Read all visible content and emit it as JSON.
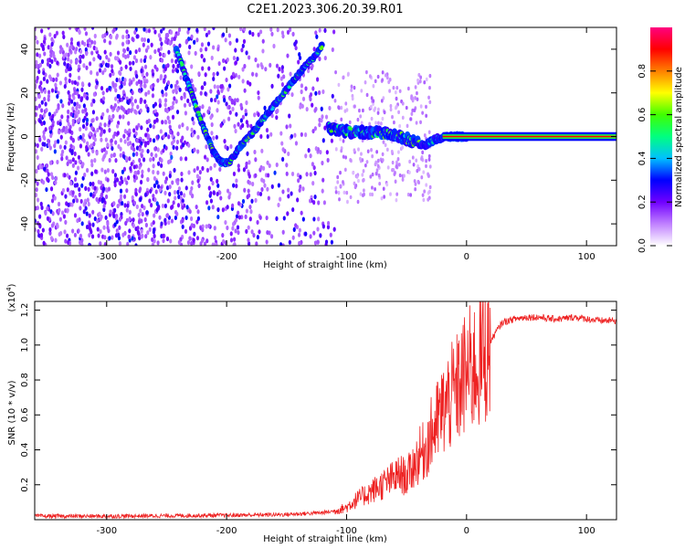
{
  "title": "C2E1.2023.306.20.39.R01",
  "chart_data": [
    {
      "type": "heatmap",
      "title": "C2E1.2023.306.20.39.R01",
      "xlabel": "Height of straight line (km)",
      "ylabel": "Frequency (Hz)",
      "xlim": [
        -360,
        125
      ],
      "ylim": [
        -50,
        50
      ],
      "x_ticks": [
        -300,
        -200,
        -100,
        0,
        100
      ],
      "y_ticks": [
        -40,
        -20,
        0,
        20,
        40
      ],
      "grid": false,
      "description_series": [
        {
          "name": "",
          "x": [
            -242,
            -232,
            -222,
            -212,
            -205,
            -198,
            -188,
            -178,
            -168,
            -158,
            -148,
            -138,
            -128,
            -120
          ],
          "y": [
            40,
            24,
            8,
            -6,
            -12,
            -12,
            -4,
            2,
            9,
            16,
            23,
            30,
            36,
            42
          ]
        },
        {
          "name": "",
          "x": [
            -115,
            -105,
            -95,
            -85,
            -75,
            -65,
            -55,
            -45,
            -35,
            -25,
            -15,
            -5,
            5,
            125
          ],
          "y": [
            4,
            3,
            2,
            2,
            2,
            1,
            0,
            -2,
            -4,
            -1,
            0,
            0,
            0,
            0
          ]
        }
      ],
      "colorbar": {
        "label": "Normalized spectral amplitude",
        "range": [
          0.0,
          1.0
        ],
        "ticks": [
          0.0,
          0.2,
          0.4,
          0.6,
          0.8
        ],
        "colors": [
          "#ffffff",
          "#c080ff",
          "#7000ff",
          "#0000ff",
          "#00c0ff",
          "#00ff80",
          "#40ff00",
          "#ffff00",
          "#ff8000",
          "#ff0000",
          "#ff0080"
        ]
      }
    },
    {
      "type": "line",
      "xlabel": "Height of straight line (km)",
      "ylabel": "SNR (10 * v/v)",
      "scale_label": "(x10^4)",
      "xlim": [
        -360,
        125
      ],
      "ylim": [
        0,
        1.25
      ],
      "x_ticks": [
        -300,
        -200,
        -100,
        0,
        100
      ],
      "y_ticks": [
        0.2,
        0.4,
        0.6,
        0.8,
        1.0,
        1.2
      ],
      "grid": false,
      "color": "#ee2222",
      "series": [
        {
          "name": "",
          "x": [
            -360,
            -300,
            -200,
            -150,
            -120,
            -110,
            -100,
            -95,
            -90,
            -85,
            -80,
            -75,
            -70,
            -65,
            -60,
            -55,
            -50,
            -45,
            -40,
            -35,
            -30,
            -25,
            -20,
            -15,
            -10,
            -5,
            0,
            5,
            10,
            15,
            20,
            25,
            30,
            40,
            50,
            60,
            70,
            80,
            90,
            100,
            110,
            125
          ],
          "y": [
            0.02,
            0.02,
            0.025,
            0.03,
            0.04,
            0.05,
            0.07,
            0.1,
            0.12,
            0.14,
            0.16,
            0.18,
            0.2,
            0.22,
            0.24,
            0.26,
            0.24,
            0.3,
            0.36,
            0.4,
            0.48,
            0.55,
            0.62,
            0.68,
            0.72,
            0.78,
            0.84,
            0.86,
            0.9,
            0.95,
            1.02,
            1.08,
            1.13,
            1.15,
            1.16,
            1.16,
            1.15,
            1.15,
            1.16,
            1.15,
            1.14,
            1.14
          ]
        }
      ]
    }
  ]
}
